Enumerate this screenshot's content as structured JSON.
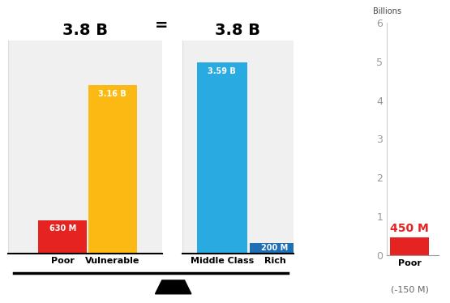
{
  "separator": "=",
  "chart_data": [
    {
      "type": "bar",
      "title": "3.8 B",
      "categories": [
        "Poor",
        "Vulnerable"
      ],
      "values": [
        0.63,
        3.16
      ],
      "value_labels": [
        "630 M",
        "3.16 B"
      ],
      "colors": [
        "#e52421",
        "#fdb913"
      ],
      "ylim": [
        0,
        4
      ],
      "data_labels": true,
      "tick_labels": "x"
    },
    {
      "type": "bar",
      "title": "3.8 B",
      "categories": [
        "Middle Class",
        "Rich"
      ],
      "values": [
        3.59,
        0.2
      ],
      "value_labels": [
        "3.59 B",
        "200 M"
      ],
      "colors": [
        "#29abe2",
        "#1e6fb5"
      ],
      "ylim": [
        0,
        4
      ],
      "data_labels": true,
      "tick_labels": "x"
    },
    {
      "type": "bar",
      "y_label": "Billions",
      "categories": [
        "Poor"
      ],
      "values": [
        0.45
      ],
      "value_labels": [
        "450 M"
      ],
      "colors": [
        "#e52421"
      ],
      "annotation": "(-150 M)",
      "ylim": [
        0,
        6
      ],
      "yticks": [
        0,
        1,
        2,
        3,
        4,
        5,
        6
      ],
      "data_labels": true
    }
  ]
}
